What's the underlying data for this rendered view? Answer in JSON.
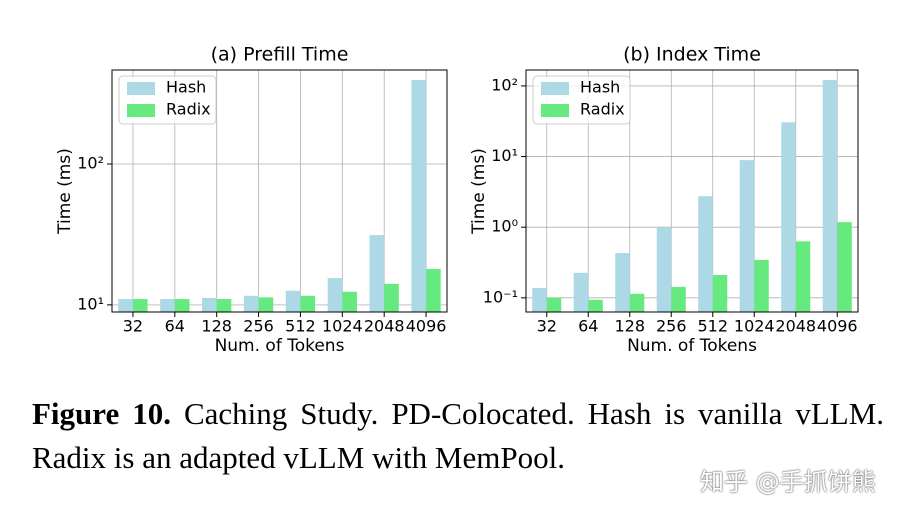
{
  "chart_data": [
    {
      "type": "bar",
      "title": "(a) Prefill Time",
      "x_label": "Num. of Tokens",
      "y_label": "Time (ms)",
      "categories": [
        "32",
        "64",
        "128",
        "256",
        "512",
        "1024",
        "2048",
        "4096"
      ],
      "series": [
        {
          "name": "Hash",
          "color": "#add8e6",
          "values": [
            11.0,
            11.0,
            11.2,
            11.6,
            12.6,
            15.5,
            31.3,
            395
          ]
        },
        {
          "name": "Radix",
          "color": "#66ea80",
          "values": [
            11.0,
            11.0,
            11.0,
            11.3,
            11.6,
            12.4,
            14.1,
            18.0
          ]
        }
      ],
      "log_scale": true,
      "ylim": [
        8.9,
        465
      ],
      "yticks": [
        {
          "value": 10,
          "label": "10¹"
        },
        {
          "value": 100,
          "label": "10²"
        }
      ],
      "grid": true,
      "legend": "upper-left"
    },
    {
      "type": "bar",
      "title": "(b) Index Time",
      "x_label": "Num. of Tokens",
      "y_label": "Time (ms)",
      "categories": [
        "32",
        "64",
        "128",
        "256",
        "512",
        "1024",
        "2048",
        "4096"
      ],
      "series": [
        {
          "name": "Hash",
          "color": "#add8e6",
          "values": [
            0.138,
            0.226,
            0.43,
            1.0,
            2.75,
            8.9,
            30.5,
            121
          ]
        },
        {
          "name": "Radix",
          "color": "#66ea80",
          "values": [
            0.1,
            0.094,
            0.114,
            0.143,
            0.21,
            0.344,
            0.63,
            1.18
          ]
        }
      ],
      "log_scale": true,
      "ylim": [
        0.063,
        168
      ],
      "yticks": [
        {
          "value": 0.1,
          "label": "10⁻¹"
        },
        {
          "value": 1,
          "label": "10⁰"
        },
        {
          "value": 10,
          "label": "10¹"
        },
        {
          "value": 100,
          "label": "10²"
        }
      ],
      "grid": true,
      "legend": "upper-left"
    }
  ],
  "caption": {
    "label": "Figure 10.",
    "text": "Caching Study. PD-Colocated. Hash is vanilla vLLM. Radix is an adapted vLLM with MemPool."
  },
  "watermark": "知乎 @手抓饼熊"
}
